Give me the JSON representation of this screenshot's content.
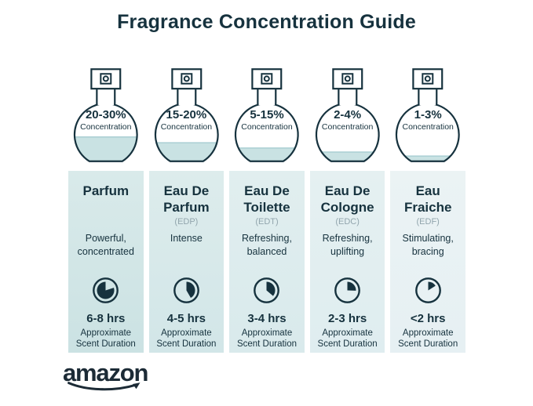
{
  "title": "Fragrance Concentration Guide",
  "brand": {
    "name": "amazon"
  },
  "colors": {
    "ink": "#16323E",
    "abbr_gray": "#92A5AD",
    "bottle_fill": "#C9E2E3",
    "fill_line": "#AACFD3",
    "logo": "#1C2B36",
    "card_gradients": [
      [
        "#D9EAEA",
        "#CBE2E3"
      ],
      [
        "#DDECEC",
        "#D2E6E8"
      ],
      [
        "#E1EEEF",
        "#D9EAEC"
      ],
      [
        "#E5F0F1",
        "#DFEDF0"
      ],
      [
        "#EBF3F4",
        "#E6F0F3"
      ]
    ]
  },
  "columns": [
    {
      "concentration": "20-30%",
      "concentration_caption": "Concentration",
      "fill_percent": 42,
      "name": "Parfum",
      "abbr": "",
      "description": "Powerful, concentrated",
      "clock": {
        "start_deg": 72,
        "end_deg": 360
      },
      "duration": "6-8 hrs",
      "duration_caption": "Approximate Scent Duration"
    },
    {
      "concentration": "15-20%",
      "concentration_caption": "Concentration",
      "fill_percent": 32,
      "name": "Eau De Parfum",
      "abbr": "(EDP)",
      "description": "Intense",
      "clock": {
        "start_deg": 0,
        "end_deg": 150
      },
      "duration": "4-5 hrs",
      "duration_caption": "Approximate Scent Duration"
    },
    {
      "concentration": "5-15%",
      "concentration_caption": "Concentration",
      "fill_percent": 23,
      "name": "Eau De Toilette",
      "abbr": "(EDT)",
      "description": "Refreshing, balanced",
      "clock": {
        "start_deg": 0,
        "end_deg": 130
      },
      "duration": "3-4 hrs",
      "duration_caption": "Approximate Scent Duration"
    },
    {
      "concentration": "2-4%",
      "concentration_caption": "Concentration",
      "fill_percent": 16,
      "name": "Eau De Cologne",
      "abbr": "(EDC)",
      "description": "Refreshing, uplifting",
      "clock": {
        "start_deg": 0,
        "end_deg": 92
      },
      "duration": "2-3 hrs",
      "duration_caption": "Approximate Scent Duration"
    },
    {
      "concentration": "1-3%",
      "concentration_caption": "Concentration",
      "fill_percent": 9,
      "name": "Eau Fraiche",
      "abbr": "(EDF)",
      "description": "Stimulating, bracing",
      "clock": {
        "start_deg": 0,
        "end_deg": 58
      },
      "duration": "<2 hrs",
      "duration_caption": "Approximate Scent Duration"
    }
  ]
}
